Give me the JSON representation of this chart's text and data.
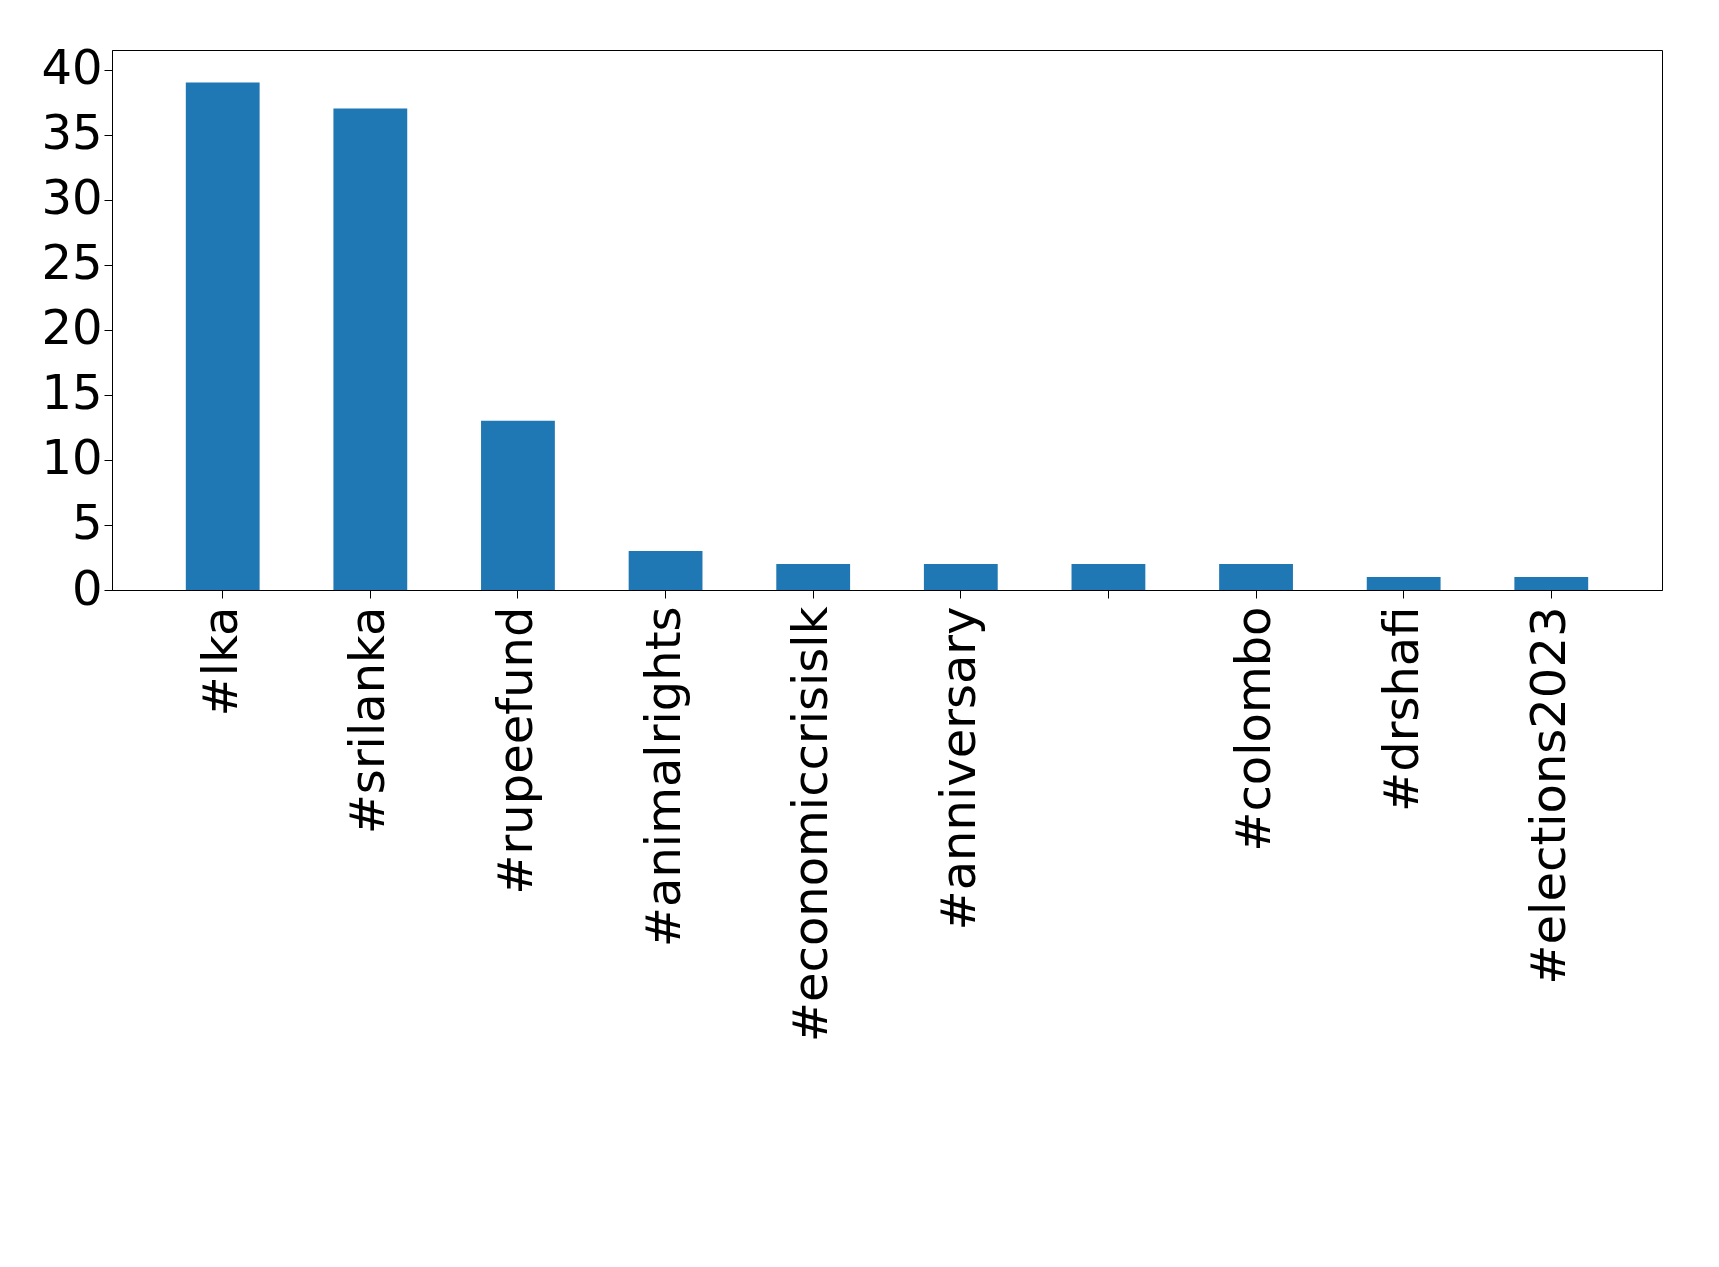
{
  "chart_data": {
    "type": "bar",
    "categories": [
      "#lka",
      "#srilanka",
      "#rupeefund",
      "#animalrights",
      "#economiccrisislk",
      "#anniversary",
      null,
      "#colombo",
      "#drshafi",
      "#elections2023"
    ],
    "values": [
      39,
      37,
      13,
      3,
      2,
      2,
      2,
      2,
      1,
      1
    ],
    "color": "#1f77b4",
    "ylim": [
      0,
      41.5
    ],
    "yticks": [
      0,
      5,
      10,
      15,
      20,
      25,
      30,
      35,
      40
    ],
    "grid": false
  }
}
